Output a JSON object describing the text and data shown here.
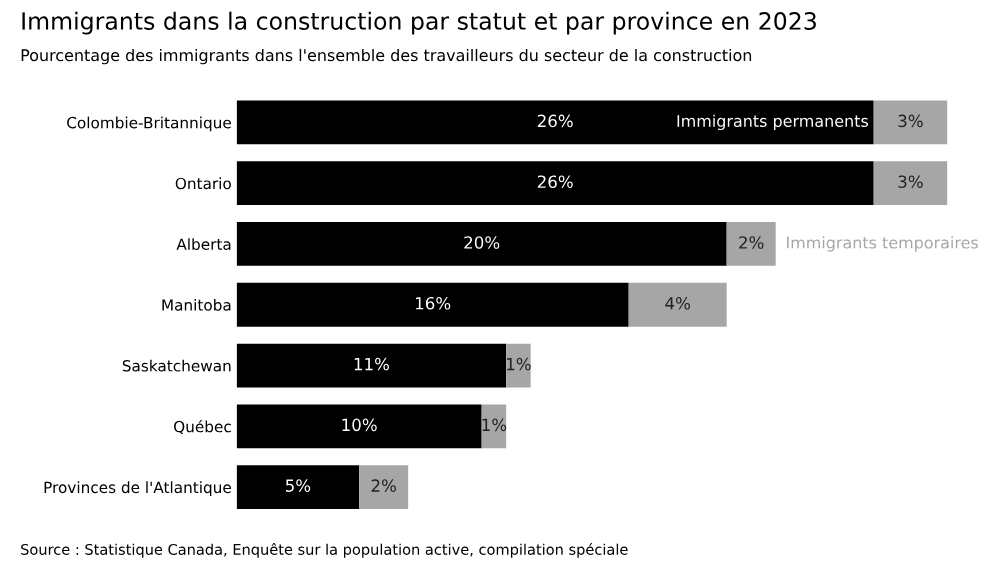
{
  "chart_data": {
    "type": "bar",
    "orientation": "horizontal",
    "stacked": true,
    "legend": false,
    "grid": false,
    "tick_labels": "y",
    "title": "Immigrants dans la construction par statut et par province en 2023",
    "subtitle": "Pourcentage des immigrants dans l'ensemble des travailleurs du secteur de la construction",
    "categories": [
      "Colombie-Britannique",
      "Ontario",
      "Alberta",
      "Manitoba",
      "Saskatchewan",
      "Québec",
      "Provinces de l'Atlantique"
    ],
    "series": [
      {
        "name": "Immigrants permanents",
        "color": "#000000",
        "values": [
          26,
          26,
          20,
          16,
          11,
          10,
          5
        ],
        "value_labels": [
          "26%",
          "26%",
          "20%",
          "16%",
          "11%",
          "10%",
          "5%"
        ]
      },
      {
        "name": "Immigrants temporaires",
        "color": "#a6a6a6",
        "values": [
          3,
          3,
          2,
          4,
          1,
          1,
          2
        ],
        "value_labels": [
          "3%",
          "3%",
          "2%",
          "4%",
          "1%",
          "1%",
          "2%"
        ]
      }
    ],
    "annotations": [
      "Source : Statistique Canada, Enquête sur la population active, compilation spéciale"
    ]
  }
}
